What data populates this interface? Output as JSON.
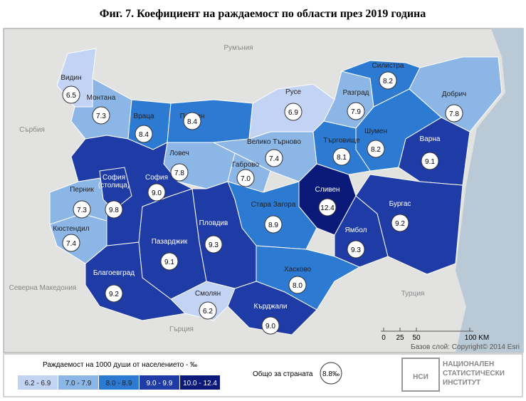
{
  "header": {
    "title": "Фиг. 7. Коефициент на раждаемост по области през 2019 година"
  },
  "map": {
    "countries": [
      "Румъния",
      "Сърбия",
      "Северна Македония",
      "Гърция",
      "Турция"
    ],
    "regions": [
      {
        "name": [
          "Видин"
        ],
        "value": "6.5",
        "class": 0
      },
      {
        "name": [
          "Монтана"
        ],
        "value": "7.3",
        "class": 1
      },
      {
        "name": [
          "Враца"
        ],
        "value": "8.4",
        "class": 2
      },
      {
        "name": [
          "Плевен"
        ],
        "value": "8.4",
        "class": 2
      },
      {
        "name": [
          "Ловеч"
        ],
        "value": "7.8",
        "class": 1
      },
      {
        "name": [
          "Велико Търново"
        ],
        "value": "7.4",
        "class": 1
      },
      {
        "name": [
          "Габрово"
        ],
        "value": "7.0",
        "class": 1
      },
      {
        "name": [
          "Русе"
        ],
        "value": "6.9",
        "class": 0
      },
      {
        "name": [
          "Разград"
        ],
        "value": "7.9",
        "class": 1
      },
      {
        "name": [
          "Силистра"
        ],
        "value": "8.2",
        "class": 2
      },
      {
        "name": [
          "Добрич"
        ],
        "value": "7.8",
        "class": 1
      },
      {
        "name": [
          "Шумен"
        ],
        "value": "8.2",
        "class": 2
      },
      {
        "name": [
          "Търговище"
        ],
        "value": "8.1",
        "class": 2
      },
      {
        "name": [
          "Варна"
        ],
        "value": "9.1",
        "class": 3
      },
      {
        "name": [
          "Сливен"
        ],
        "value": "12.4",
        "class": 4
      },
      {
        "name": [
          "Стара Загора"
        ],
        "value": "8.9",
        "class": 2
      },
      {
        "name": [
          "Ямбол"
        ],
        "value": "9.3",
        "class": 3
      },
      {
        "name": [
          "Бургас"
        ],
        "value": "9.2",
        "class": 3
      },
      {
        "name": [
          "Хасково"
        ],
        "value": "8.0",
        "class": 2
      },
      {
        "name": [
          "Кърджали"
        ],
        "value": "9.0",
        "class": 3
      },
      {
        "name": [
          "Смолян"
        ],
        "value": "6.2",
        "class": 0
      },
      {
        "name": [
          "Пловдив"
        ],
        "value": "9.3",
        "class": 3
      },
      {
        "name": [
          "Пазарджик"
        ],
        "value": "9.1",
        "class": 3
      },
      {
        "name": [
          "Благоевград"
        ],
        "value": "9.2",
        "class": 3
      },
      {
        "name": [
          "Кюстендил"
        ],
        "value": "7.4",
        "class": 1
      },
      {
        "name": [
          "Перник"
        ],
        "value": "7.3",
        "class": 1
      },
      {
        "name": [
          "София"
        ],
        "value": "9.0",
        "class": 3
      },
      {
        "name": [
          "София",
          "(столица)"
        ],
        "value": "9.8",
        "class": 3
      }
    ],
    "scale": [
      "0",
      "25",
      "50",
      "100 KM"
    ],
    "attribution": "Базов слой: Copyright© 2014 Esri"
  },
  "legend": {
    "title": "Раждаемост на 1000 души от населението - ‰",
    "classes": [
      {
        "label": "6.2 - 6.9",
        "color": "#c3d3f4"
      },
      {
        "label": "7.0 - 7.9",
        "color": "#8cb6e6"
      },
      {
        "label": "8.0 - 8.9",
        "color": "#2d7ad3"
      },
      {
        "label": "9.0 - 9.9",
        "color": "#1f3ba6"
      },
      {
        "label": "10.0 - 12.4",
        "color": "#0b1a78"
      }
    ],
    "total_label": "Общо за страната",
    "total_value": "8.8‰"
  },
  "logo": {
    "lines": [
      "НАЦИОНАЛЕН",
      "СТАТИСТИЧЕСКИ",
      "ИНСТИТУТ"
    ],
    "mark": "НСИ"
  }
}
